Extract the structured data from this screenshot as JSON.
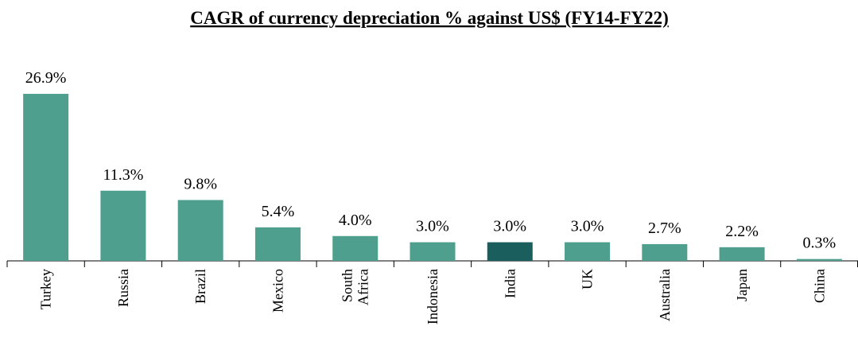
{
  "chart_data": {
    "type": "bar",
    "title": "CAGR of currency depreciation % against US$ (FY14-FY22)",
    "categories": [
      "Turkey",
      "Russia",
      "Brazil",
      "Mexico",
      "South Africa",
      "Indonesia",
      "India",
      "UK",
      "Australia",
      "Japan",
      "China"
    ],
    "values": [
      26.9,
      11.3,
      9.8,
      5.4,
      4.0,
      3.0,
      3.0,
      3.0,
      2.7,
      2.2,
      0.3
    ],
    "value_labels": [
      "26.9%",
      "11.3%",
      "9.8%",
      "5.4%",
      "4.0%",
      "3.0%",
      "3.0%",
      "3.0%",
      "2.7%",
      "2.2%",
      "0.3%"
    ],
    "colors": [
      "#4e9f8d",
      "#4e9f8d",
      "#4e9f8d",
      "#4e9f8d",
      "#4e9f8d",
      "#4e9f8d",
      "#1a5e5e",
      "#4e9f8d",
      "#4e9f8d",
      "#4e9f8d",
      "#4e9f8d"
    ]
  }
}
